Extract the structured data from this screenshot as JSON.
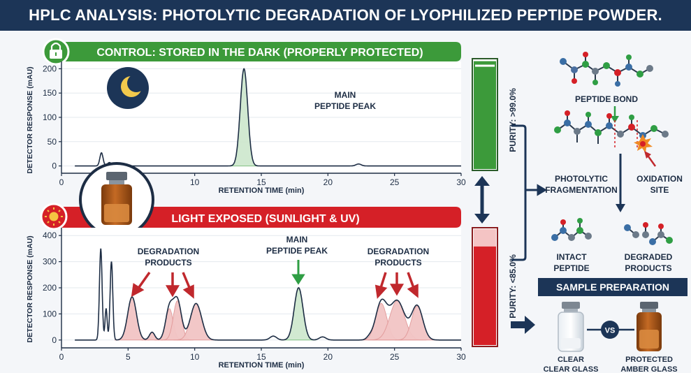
{
  "title": "HPLC ANALYSIS: PHOTOLYTIC DEGRADATION OF LYOPHILIZED PEPTIDE POWDER.",
  "colors": {
    "navy": "#1c3557",
    "green": "#3c9a3a",
    "red": "#d52027",
    "amber": "#b8611a",
    "arrow_red": "#c0282d",
    "arrow_green": "#2f9e44",
    "peak_green_fill": "#cfe8cf",
    "peak_red_fill": "#f2c5c5",
    "trace": "#1d2d44"
  },
  "control_panel": {
    "header": "CONTROL: STORED IN THE DARK (PROPERLY PROTECTED)",
    "icons": [
      "lock-icon",
      "moon-icon"
    ],
    "main_peak_label_line1": "MAIN",
    "main_peak_label_line2": "PEPTIDE PEAK",
    "purity_label": "PURITY: >99.0%",
    "purity_fraction": 0.99
  },
  "light_panel": {
    "header": "LIGHT EXPOSED (SUNLIGHT & UV)",
    "icons": [
      "sun-icon",
      "amber-vial-icon"
    ],
    "degradation_label_line1": "DEGRADATION",
    "degradation_label_line2": "PRODUCTS",
    "main_peak_label_line1": "MAIN",
    "main_peak_label_line2": "PEPTIDE PEAK",
    "purity_label": "PURITY: <85.0%",
    "purity_fraction": 0.85
  },
  "chart_data": [
    {
      "type": "line",
      "name": "control",
      "xlabel": "RETENTION TIME (min)",
      "ylabel": "DETECTOR RESPONSE (mAU)",
      "xlim": [
        0,
        30
      ],
      "ylim": [
        -15,
        215
      ],
      "xticks": [
        0,
        5,
        10,
        15,
        20,
        25,
        30
      ],
      "yticks": [
        0,
        50,
        100,
        150,
        200
      ],
      "peaks": [
        {
          "rt": 3.0,
          "height": 27,
          "width": 0.12
        },
        {
          "rt": 3.6,
          "height": 7,
          "width": 0.15
        },
        {
          "rt": 13.7,
          "height": 200,
          "width": 0.28
        },
        {
          "rt": 22.3,
          "height": 4,
          "width": 0.2
        }
      ],
      "main_peak_rt": 13.7
    },
    {
      "type": "line",
      "name": "light exposed",
      "xlabel": "RETENTION TIME (min)",
      "ylabel": "DETECTOR RESPONSE (mAU)",
      "xlim": [
        0,
        30
      ],
      "ylim": [
        -30,
        430
      ],
      "xticks": [
        0,
        5,
        10,
        15,
        20,
        25,
        30
      ],
      "yticks": [
        0,
        100,
        200,
        300,
        400
      ],
      "peaks": [
        {
          "rt": 2.95,
          "height": 350,
          "width": 0.1,
          "fill": "none"
        },
        {
          "rt": 3.35,
          "height": 120,
          "width": 0.08,
          "fill": "none"
        },
        {
          "rt": 3.75,
          "height": 300,
          "width": 0.1,
          "fill": "none"
        },
        {
          "rt": 5.3,
          "height": 165,
          "width": 0.33,
          "fill": "red"
        },
        {
          "rt": 6.8,
          "height": 30,
          "width": 0.2,
          "fill": "red"
        },
        {
          "rt": 8.1,
          "height": 120,
          "width": 0.28,
          "fill": "red"
        },
        {
          "rt": 8.7,
          "height": 150,
          "width": 0.3,
          "fill": "red"
        },
        {
          "rt": 10.1,
          "height": 140,
          "width": 0.42,
          "fill": "red"
        },
        {
          "rt": 15.9,
          "height": 15,
          "width": 0.25,
          "fill": "none"
        },
        {
          "rt": 17.8,
          "height": 200,
          "width": 0.33,
          "fill": "green"
        },
        {
          "rt": 19.6,
          "height": 12,
          "width": 0.25,
          "fill": "none"
        },
        {
          "rt": 23.1,
          "height": 8,
          "width": 0.2,
          "fill": "none"
        },
        {
          "rt": 24.0,
          "height": 140,
          "width": 0.42,
          "fill": "red"
        },
        {
          "rt": 25.2,
          "height": 150,
          "width": 0.55,
          "fill": "red"
        },
        {
          "rt": 26.7,
          "height": 130,
          "width": 0.42,
          "fill": "red"
        }
      ],
      "main_peak_rt": 17.8
    }
  ],
  "right_panel": {
    "peptide_bond_label": "PEPTIDE BOND",
    "photolytic_label_line1": "PHOTOLYTIC",
    "photolytic_label_line2": "FRAGMENTATION",
    "oxidation_label_line1": "OXIDATION",
    "oxidation_label_line2": "SITE",
    "intact_label_line1": "INTACT",
    "intact_label_line2": "PEPTIDE",
    "degraded_label_line1": "DEGRADED",
    "degraded_label_line2": "PRODUCTS",
    "sample_prep_header": "SAMPLE PREPARATION",
    "vs_label": "VS",
    "clear_label_line1": "CLEAR",
    "clear_label_line2": "CLEAR GLASS",
    "protected_label_line1": "PROTECTED",
    "protected_label_line2": "AMBER GLASS"
  }
}
